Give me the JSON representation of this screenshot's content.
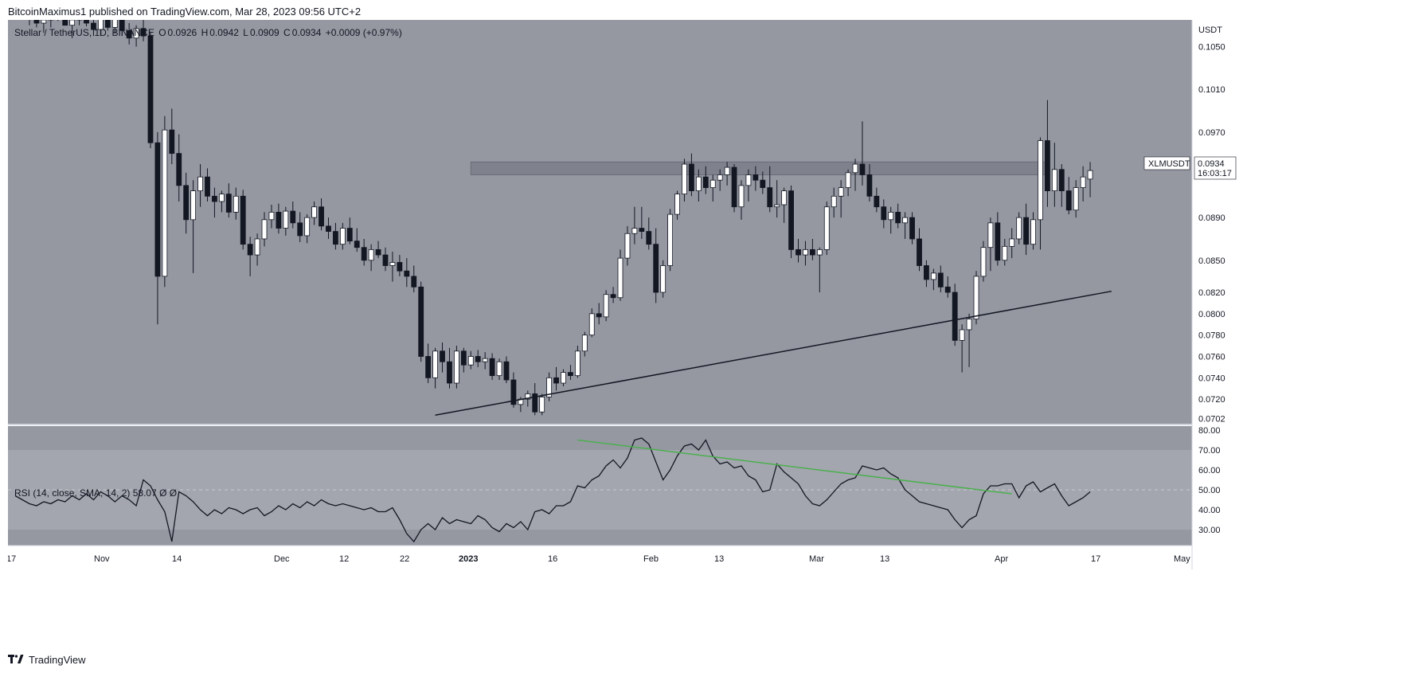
{
  "header": {
    "published_text": "BitcoinMaximus1 published on TradingView.com, Mar 28, 2023 09:56 UTC+2"
  },
  "footer": {
    "brand": "TradingView"
  },
  "legend": {
    "symbol": "Stellar / TetherUS, 1D, BINANCE",
    "o_label": "O",
    "o_value": "0.0926",
    "h_label": "H",
    "h_value": "0.0942",
    "l_label": "L",
    "l_value": "0.0909",
    "c_label": "C",
    "c_value": "0.0934",
    "change": "+0.0009 (+0.97%)"
  },
  "rsi_legend": {
    "label": "RSI (14, close, SMA, 14, 2)",
    "value": "58.07",
    "extra": "Ø Ø"
  },
  "price_axis": {
    "currency": "USDT",
    "ticks": [
      "0.1050",
      "0.1010",
      "0.0970",
      "0.0890",
      "0.0850",
      "0.0820",
      "0.0800",
      "0.0780",
      "0.0760",
      "0.0740",
      "0.0720",
      "0.0702"
    ]
  },
  "rsi_axis": {
    "ticks": [
      "80.00",
      "70.00",
      "60.00",
      "50.00",
      "40.00",
      "30.00"
    ]
  },
  "price_tag": {
    "symbol": "XLMUSDT",
    "price": "0.0934",
    "countdown": "16:03:17"
  },
  "time_axis": {
    "labels": [
      "17",
      "Nov",
      "14",
      "Dec",
      "12",
      "22",
      "2023",
      "16",
      "Feb",
      "13",
      "Mar",
      "13",
      "Apr",
      "17",
      "May"
    ]
  },
  "colors": {
    "chart_bg": "#9598a1",
    "axis_bg": "#ffffff",
    "bull_candle": "#ffffff",
    "bear_candle": "#131722",
    "resistance_zone": "#787b86",
    "trendline": "#131722",
    "rsi_line": "#131722",
    "rsi_trendline": "#4caf50"
  },
  "chart_data": [
    {
      "type": "candlestick",
      "title": "Stellar / TetherUS, 1D, BINANCE",
      "ylabel": "USDT",
      "ylim": [
        0.0697,
        0.1075
      ],
      "annotations": {
        "resistance_zone": {
          "low": 0.093,
          "high": 0.0942,
          "from_index": 62,
          "to_index": 143
        },
        "ascending_support": {
          "from": [
            57,
            0.0705
          ],
          "to": [
            152,
            0.0821
          ]
        }
      },
      "candles": [
        [
          0.1085,
          0.109,
          0.107,
          0.1078
        ],
        [
          0.1078,
          0.1085,
          0.1068,
          0.1072
        ],
        [
          0.1072,
          0.108,
          0.1063,
          0.1075
        ],
        [
          0.1075,
          0.1085,
          0.1068,
          0.108
        ],
        [
          0.108,
          0.1092,
          0.1074,
          0.1087
        ],
        [
          0.1087,
          0.1095,
          0.107,
          0.107
        ],
        [
          0.107,
          0.1078,
          0.1058,
          0.1075
        ],
        [
          0.1075,
          0.109,
          0.107,
          0.1085
        ],
        [
          0.1085,
          0.1092,
          0.1069,
          0.1072
        ],
        [
          0.1072,
          0.1078,
          0.106,
          0.1066
        ],
        [
          0.1066,
          0.108,
          0.106,
          0.1077
        ],
        [
          0.1077,
          0.1085,
          0.1065,
          0.1068
        ],
        [
          0.1068,
          0.1095,
          0.1062,
          0.1088
        ],
        [
          0.1088,
          0.109,
          0.106,
          0.1065
        ],
        [
          0.1065,
          0.1072,
          0.1052,
          0.1058
        ],
        [
          0.1058,
          0.107,
          0.105,
          0.1067
        ],
        [
          0.1067,
          0.1075,
          0.1055,
          0.106
        ],
        [
          0.106,
          0.1064,
          0.0955,
          0.096
        ],
        [
          0.096,
          0.097,
          0.079,
          0.0835
        ],
        [
          0.0835,
          0.0985,
          0.0825,
          0.0972
        ],
        [
          0.0972,
          0.0992,
          0.094,
          0.095
        ],
        [
          0.095,
          0.0968,
          0.0905,
          0.092
        ],
        [
          0.092,
          0.0932,
          0.0875,
          0.0888
        ],
        [
          0.0888,
          0.0925,
          0.0838,
          0.0915
        ],
        [
          0.0915,
          0.094,
          0.09,
          0.0928
        ],
        [
          0.0928,
          0.0936,
          0.0905,
          0.091
        ],
        [
          0.091,
          0.0918,
          0.089,
          0.0905
        ],
        [
          0.0905,
          0.0915,
          0.0895,
          0.0912
        ],
        [
          0.0912,
          0.0922,
          0.089,
          0.0895
        ],
        [
          0.0895,
          0.0918,
          0.0888,
          0.091
        ],
        [
          0.091,
          0.0916,
          0.086,
          0.0865
        ],
        [
          0.0865,
          0.0872,
          0.0835,
          0.0855
        ],
        [
          0.0855,
          0.0875,
          0.0845,
          0.087
        ],
        [
          0.087,
          0.0895,
          0.0863,
          0.0888
        ],
        [
          0.0888,
          0.0902,
          0.088,
          0.0895
        ],
        [
          0.0895,
          0.0903,
          0.0875,
          0.088
        ],
        [
          0.088,
          0.09,
          0.0873,
          0.0896
        ],
        [
          0.0896,
          0.0905,
          0.088,
          0.0885
        ],
        [
          0.0885,
          0.0895,
          0.0867,
          0.0873
        ],
        [
          0.0873,
          0.0893,
          0.0866,
          0.089
        ],
        [
          0.089,
          0.0905,
          0.0883,
          0.09
        ],
        [
          0.09,
          0.0908,
          0.0878,
          0.0882
        ],
        [
          0.0882,
          0.089,
          0.087,
          0.0877
        ],
        [
          0.0877,
          0.0885,
          0.086,
          0.0865
        ],
        [
          0.0865,
          0.0885,
          0.086,
          0.088
        ],
        [
          0.088,
          0.089,
          0.0865,
          0.0868
        ],
        [
          0.0868,
          0.088,
          0.0858,
          0.0862
        ],
        [
          0.0862,
          0.087,
          0.0845,
          0.085
        ],
        [
          0.085,
          0.0865,
          0.084,
          0.086
        ],
        [
          0.086,
          0.0868,
          0.0852,
          0.0855
        ],
        [
          0.0855,
          0.0862,
          0.084,
          0.0845
        ],
        [
          0.0845,
          0.0858,
          0.083,
          0.0848
        ],
        [
          0.0848,
          0.0855,
          0.0835,
          0.084
        ],
        [
          0.084,
          0.0852,
          0.0825,
          0.0835
        ],
        [
          0.0835,
          0.0845,
          0.082,
          0.0825
        ],
        [
          0.0825,
          0.083,
          0.0755,
          0.076
        ],
        [
          0.076,
          0.0772,
          0.0735,
          0.074
        ],
        [
          0.074,
          0.0768,
          0.073,
          0.0765
        ],
        [
          0.0765,
          0.0773,
          0.0745,
          0.0755
        ],
        [
          0.0755,
          0.0768,
          0.073,
          0.0735
        ],
        [
          0.0735,
          0.077,
          0.073,
          0.0765
        ],
        [
          0.0765,
          0.0768,
          0.0745,
          0.0752
        ],
        [
          0.0752,
          0.0765,
          0.0748,
          0.076
        ],
        [
          0.076,
          0.0766,
          0.075,
          0.0755
        ],
        [
          0.0755,
          0.0764,
          0.0748,
          0.0758
        ],
        [
          0.0758,
          0.0763,
          0.0738,
          0.0742
        ],
        [
          0.0742,
          0.0758,
          0.0738,
          0.0755
        ],
        [
          0.0755,
          0.076,
          0.0735,
          0.0738
        ],
        [
          0.0738,
          0.0745,
          0.0712,
          0.0715
        ],
        [
          0.0715,
          0.0722,
          0.0708,
          0.072
        ],
        [
          0.072,
          0.0728,
          0.0713,
          0.0725
        ],
        [
          0.0725,
          0.0735,
          0.0705,
          0.0708
        ],
        [
          0.0708,
          0.0725,
          0.0705,
          0.0722
        ],
        [
          0.0722,
          0.0745,
          0.0718,
          0.074
        ],
        [
          0.074,
          0.075,
          0.0728,
          0.0735
        ],
        [
          0.0735,
          0.0748,
          0.0732,
          0.0745
        ],
        [
          0.0745,
          0.0752,
          0.0738,
          0.0742
        ],
        [
          0.0742,
          0.077,
          0.074,
          0.0765
        ],
        [
          0.0765,
          0.0783,
          0.076,
          0.078
        ],
        [
          0.078,
          0.0805,
          0.0778,
          0.08
        ],
        [
          0.08,
          0.081,
          0.079,
          0.0797
        ],
        [
          0.0797,
          0.0822,
          0.0793,
          0.0818
        ],
        [
          0.0818,
          0.0825,
          0.081,
          0.0815
        ],
        [
          0.0815,
          0.086,
          0.0812,
          0.0852
        ],
        [
          0.0852,
          0.0882,
          0.0845,
          0.0875
        ],
        [
          0.0875,
          0.09,
          0.0865,
          0.088
        ],
        [
          0.088,
          0.09,
          0.087,
          0.0877
        ],
        [
          0.0877,
          0.089,
          0.086,
          0.0865
        ],
        [
          0.0865,
          0.088,
          0.081,
          0.082
        ],
        [
          0.082,
          0.085,
          0.0815,
          0.0845
        ],
        [
          0.0845,
          0.0898,
          0.084,
          0.0893
        ],
        [
          0.0893,
          0.0915,
          0.0888,
          0.0912
        ],
        [
          0.0912,
          0.0945,
          0.0905,
          0.094
        ],
        [
          0.094,
          0.095,
          0.091,
          0.0915
        ],
        [
          0.0915,
          0.0935,
          0.0905,
          0.0928
        ],
        [
          0.0928,
          0.0938,
          0.0912,
          0.0918
        ],
        [
          0.0918,
          0.093,
          0.0905,
          0.0925
        ],
        [
          0.0925,
          0.0935,
          0.0915,
          0.093
        ],
        [
          0.093,
          0.0942,
          0.092,
          0.0937
        ],
        [
          0.0937,
          0.094,
          0.0895,
          0.09
        ],
        [
          0.09,
          0.0925,
          0.0888,
          0.092
        ],
        [
          0.092,
          0.0935,
          0.0905,
          0.093
        ],
        [
          0.093,
          0.0938,
          0.0915,
          0.0925
        ],
        [
          0.0925,
          0.0933,
          0.0912,
          0.0918
        ],
        [
          0.0918,
          0.0938,
          0.0895,
          0.09
        ],
        [
          0.09,
          0.0925,
          0.089,
          0.0902
        ],
        [
          0.0902,
          0.0918,
          0.0885,
          0.0915
        ],
        [
          0.0915,
          0.092,
          0.0852,
          0.086
        ],
        [
          0.086,
          0.087,
          0.0848,
          0.0855
        ],
        [
          0.0855,
          0.0868,
          0.0845,
          0.086
        ],
        [
          0.086,
          0.087,
          0.085,
          0.0855
        ],
        [
          0.0855,
          0.0862,
          0.082,
          0.086
        ],
        [
          0.086,
          0.0905,
          0.0855,
          0.09
        ],
        [
          0.09,
          0.0918,
          0.089,
          0.091
        ],
        [
          0.091,
          0.0925,
          0.089,
          0.0918
        ],
        [
          0.0918,
          0.0935,
          0.091,
          0.0932
        ],
        [
          0.0932,
          0.0945,
          0.0915,
          0.094
        ],
        [
          0.094,
          0.098,
          0.092,
          0.093
        ],
        [
          0.093,
          0.094,
          0.0905,
          0.091
        ],
        [
          0.091,
          0.0918,
          0.0895,
          0.09
        ],
        [
          0.09,
          0.0907,
          0.088,
          0.0888
        ],
        [
          0.0888,
          0.09,
          0.0875,
          0.0895
        ],
        [
          0.0895,
          0.0903,
          0.088,
          0.0885
        ],
        [
          0.0885,
          0.0895,
          0.087,
          0.089
        ],
        [
          0.089,
          0.0895,
          0.0865,
          0.087
        ],
        [
          0.087,
          0.088,
          0.084,
          0.0845
        ],
        [
          0.0845,
          0.085,
          0.0825,
          0.0832
        ],
        [
          0.0832,
          0.0842,
          0.0822,
          0.0838
        ],
        [
          0.0838,
          0.0845,
          0.082,
          0.0825
        ],
        [
          0.0825,
          0.0835,
          0.0815,
          0.082
        ],
        [
          0.082,
          0.0828,
          0.077,
          0.0775
        ],
        [
          0.0775,
          0.079,
          0.0745,
          0.0785
        ],
        [
          0.0785,
          0.08,
          0.075,
          0.0795
        ],
        [
          0.0795,
          0.084,
          0.079,
          0.0835
        ],
        [
          0.0835,
          0.0868,
          0.083,
          0.0862
        ],
        [
          0.0862,
          0.089,
          0.084,
          0.0885
        ],
        [
          0.0885,
          0.0895,
          0.0845,
          0.085
        ],
        [
          0.085,
          0.087,
          0.0845,
          0.0863
        ],
        [
          0.0863,
          0.088,
          0.0852,
          0.087
        ],
        [
          0.087,
          0.0895,
          0.0865,
          0.089
        ],
        [
          0.089,
          0.0903,
          0.0855,
          0.0865
        ],
        [
          0.0865,
          0.0895,
          0.086,
          0.0888
        ],
        [
          0.0888,
          0.0965,
          0.086,
          0.0962
        ],
        [
          0.0962,
          0.1,
          0.09,
          0.0915
        ],
        [
          0.0915,
          0.096,
          0.09,
          0.0935
        ],
        [
          0.0935,
          0.094,
          0.09,
          0.0915
        ],
        [
          0.0915,
          0.0928,
          0.0893,
          0.0897
        ],
        [
          0.0897,
          0.0925,
          0.089,
          0.0918
        ],
        [
          0.0918,
          0.0938,
          0.0905,
          0.0928
        ],
        [
          0.0926,
          0.0942,
          0.0909,
          0.0934
        ]
      ]
    },
    {
      "type": "line",
      "title": "RSI (14, close, SMA, 14, 2)",
      "ylim": [
        22,
        82
      ],
      "bands": {
        "upper": 70,
        "middle": 50,
        "lower": 30
      },
      "annotations": {
        "rsi_trendline": {
          "from": [
            77,
            75
          ],
          "to": [
            138,
            48
          ]
        }
      },
      "series": [
        {
          "values": [
            47,
            45,
            43,
            42,
            44,
            43,
            45,
            44,
            47,
            45,
            48,
            45,
            49,
            47,
            44,
            47,
            45,
            42,
            55,
            52,
            45,
            39,
            24,
            49,
            47,
            44,
            40,
            37,
            40,
            38,
            41,
            40,
            38,
            40,
            41,
            37,
            39,
            42,
            40,
            43,
            41,
            44,
            42,
            45,
            43,
            42,
            43,
            42,
            41,
            40,
            41,
            39,
            39,
            41,
            35,
            28,
            24,
            30,
            33,
            30,
            36,
            33,
            35,
            34,
            33,
            37,
            35,
            31,
            29,
            33,
            31,
            34,
            30,
            39,
            40,
            38,
            42,
            42,
            44,
            52,
            51,
            55,
            57,
            62,
            65,
            61,
            66,
            75,
            76,
            73,
            64,
            55,
            60,
            67,
            72,
            73,
            70,
            75,
            67,
            63,
            64,
            61,
            62,
            57,
            55,
            49,
            50,
            63,
            59,
            56,
            53,
            47,
            43,
            42,
            45,
            49,
            53,
            55,
            56,
            62,
            61,
            60,
            61,
            58,
            56,
            50,
            47,
            44,
            43,
            42,
            41,
            40,
            35,
            31,
            35,
            37,
            48,
            52,
            52,
            53,
            53,
            46,
            52,
            54,
            49,
            51,
            53,
            47,
            42,
            44,
            46,
            49
          ]
        }
      ]
    }
  ]
}
